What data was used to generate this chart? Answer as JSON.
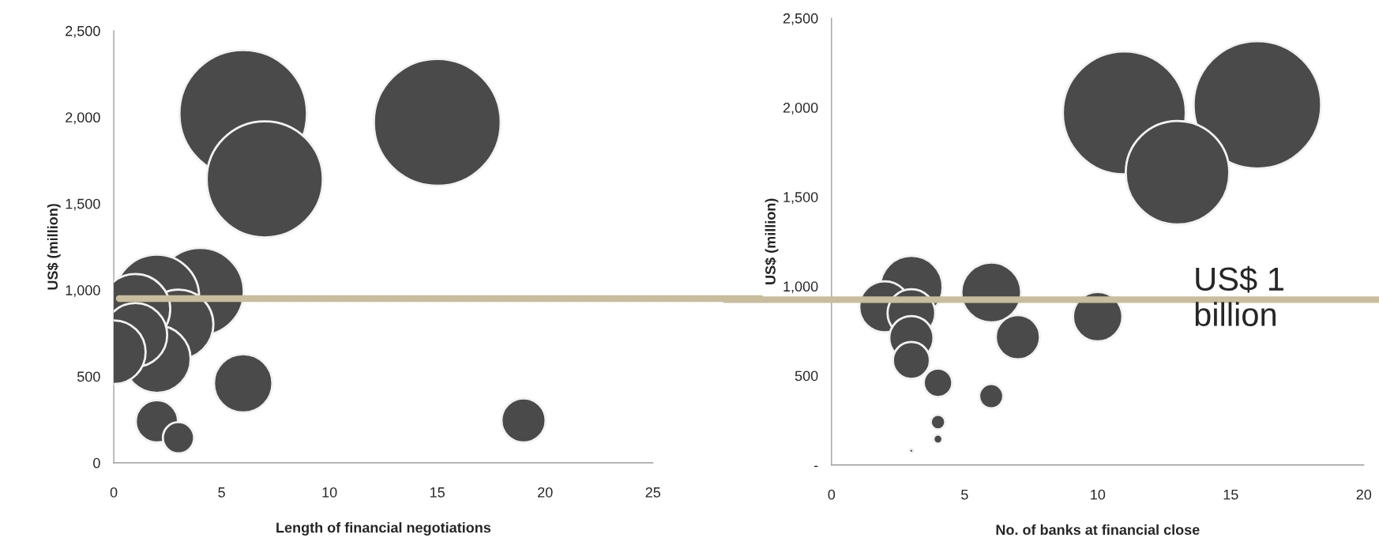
{
  "chart_data": [
    {
      "type": "bubble",
      "xlabel": "Length of financial negotiations",
      "ylabel": "US$ (million)",
      "xlim": [
        0,
        25
      ],
      "xticks": [
        0,
        5,
        10,
        15,
        20,
        25
      ],
      "ylim": [
        0,
        2500
      ],
      "yticks": [
        0,
        {
          "value": 500,
          "label": "500"
        },
        {
          "value": 1000,
          "label": "1,000"
        },
        {
          "value": 1500,
          "label": "1,500"
        },
        {
          "value": 2000,
          "label": "2,000"
        },
        {
          "value": 2500,
          "label": "2,500"
        }
      ],
      "grid": false,
      "legend": false,
      "series": [
        {
          "color": "#4a4a4a",
          "x": [
            6,
            7,
            15,
            4,
            2,
            3,
            1,
            1,
            0,
            2,
            6,
            19,
            2,
            3
          ],
          "values": [
            2020,
            1640,
            1970,
            990,
            960,
            800,
            890,
            740,
            640,
            600,
            460,
            245,
            240,
            145
          ],
          "sizes": [
            1.0,
            0.83,
            0.99,
            0.47,
            0.44,
            0.3,
            0.3,
            0.25,
            0.25,
            0.28,
            0.21,
            0.12,
            0.11,
            0.06
          ]
        }
      ],
      "ref_lines": [
        {
          "axis": "y",
          "value": 950,
          "color": "#c8bd9c"
        }
      ]
    },
    {
      "type": "bubble",
      "xlabel": "No. of banks at financial close",
      "ylabel": "US$ (million)",
      "xlim": [
        0,
        20
      ],
      "xticks": [
        0,
        5,
        10,
        15,
        20
      ],
      "ylim": [
        0,
        2500
      ],
      "yticks": [
        {
          "value": 0,
          "label": "-"
        },
        {
          "value": 500,
          "label": "500"
        },
        {
          "value": 1000,
          "label": "1,000"
        },
        {
          "value": 1500,
          "label": "1,500"
        },
        {
          "value": 2000,
          "label": "2,000"
        },
        {
          "value": 2500,
          "label": "2,500"
        }
      ],
      "grid": false,
      "legend": false,
      "series": [
        {
          "color": "#4a4a4a",
          "x": [
            11,
            16,
            13,
            3,
            2,
            6,
            10,
            7,
            3,
            3,
            3,
            4,
            6,
            4,
            4,
            3
          ],
          "values": [
            1970,
            2015,
            1635,
            995,
            885,
            965,
            830,
            715,
            850,
            710,
            585,
            460,
            385,
            240,
            145,
            80
          ],
          "sizes": [
            0.93,
            1.0,
            0.66,
            0.24,
            0.16,
            0.22,
            0.15,
            0.12,
            0.14,
            0.12,
            0.084,
            0.05,
            0.036,
            0.013,
            0.005,
            0.001
          ]
        }
      ],
      "ref_lines": [
        {
          "axis": "y",
          "value": 925,
          "color": "#c8bd9c",
          "label": "US$ 1 billion"
        }
      ]
    }
  ]
}
